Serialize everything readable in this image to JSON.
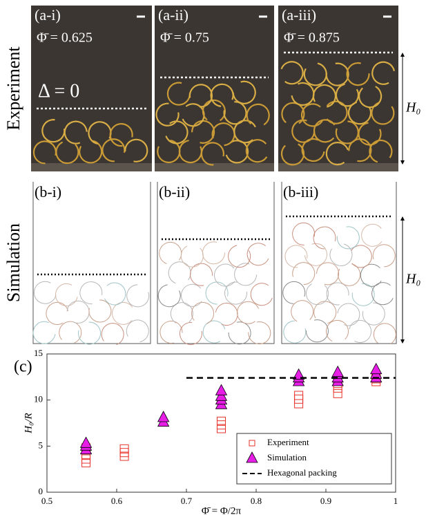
{
  "row_labels": {
    "experiment": "Experiment",
    "simulation": "Simulation"
  },
  "experiment_panels": [
    {
      "label": "(a-i)",
      "phi": "Φ̄ = 0.625",
      "note": "Δ = 0"
    },
    {
      "label": "(a-ii)",
      "phi": "Φ̄ = 0.75"
    },
    {
      "label": "(a-iii)",
      "phi": "Φ̄ = 0.875"
    }
  ],
  "simulation_panels": [
    {
      "label": "(b-i)"
    },
    {
      "label": "(b-ii)"
    },
    {
      "label": "(b-iii)"
    }
  ],
  "height_labels": [
    "H₀",
    "H₀"
  ],
  "chart_data": {
    "type": "scatter",
    "panel_label": "(c)",
    "x_label": "Φ̄ = Φ/2π",
    "y_label": "H₀/R",
    "xlim": [
      0.5,
      1
    ],
    "ylim": [
      0,
      15
    ],
    "xticks": [
      0.5,
      0.6,
      0.7,
      0.8,
      0.9,
      1
    ],
    "yticks": [
      0,
      5,
      10,
      15
    ],
    "legend": "lower right",
    "series": [
      {
        "name": "Experiment",
        "color": "#e8322b",
        "marker": "square",
        "x": [
          0.556,
          0.556,
          0.556,
          0.556,
          0.611,
          0.611,
          0.611,
          0.75,
          0.75,
          0.75,
          0.861,
          0.861,
          0.861,
          0.917,
          0.917,
          0.917,
          0.972,
          0.972,
          0.972
        ],
        "values": [
          3.2,
          3.6,
          4.0,
          4.8,
          3.9,
          4.3,
          4.7,
          6.9,
          7.3,
          7.7,
          9.6,
          10.1,
          10.5,
          10.7,
          11.3,
          11.8,
          12.0,
          12.3,
          12.6
        ]
      },
      {
        "name": "Simulation",
        "color": "#e61ee6",
        "marker": "triangle",
        "x": [
          0.556,
          0.556,
          0.556,
          0.667,
          0.667,
          0.75,
          0.75,
          0.75,
          0.75,
          0.861,
          0.861,
          0.861,
          0.917,
          0.917,
          0.917,
          0.917,
          0.972,
          0.972,
          0.972
        ],
        "values": [
          4.6,
          5.0,
          5.3,
          7.6,
          8.1,
          9.5,
          10.0,
          10.4,
          11.0,
          12.0,
          12.4,
          12.7,
          12.0,
          12.4,
          12.8,
          13.0,
          12.4,
          12.8,
          13.3
        ]
      },
      {
        "name": "Hexagonal packing",
        "color": "#000000",
        "marker": "dashed-line",
        "x": [
          0.7,
          1
        ],
        "values": [
          12.4,
          12.4
        ]
      }
    ]
  }
}
